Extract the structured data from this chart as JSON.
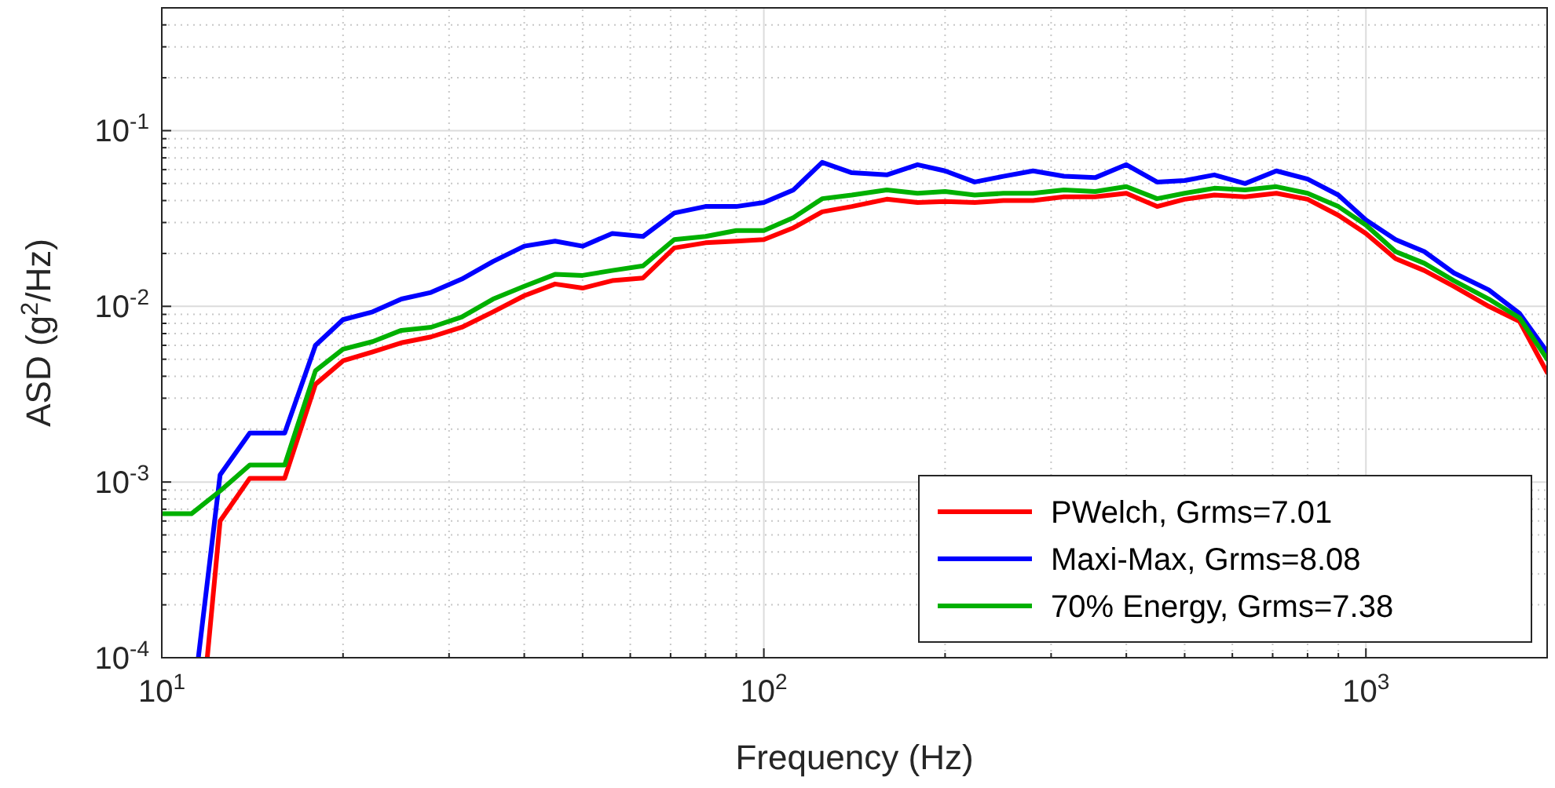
{
  "chart_data": {
    "type": "line",
    "xlabel": "Frequency (Hz)",
    "ylabel": "ASD (g$^{2}$/Hz)",
    "log": "xy",
    "grid": true,
    "legend": "bottom right",
    "line_style": "solid",
    "marker": "none",
    "xlim": [
      10,
      2000
    ],
    "xticks": [
      {
        "value": 10,
        "label": "10$^{1}$"
      },
      {
        "value": 100,
        "label": "10$^{2}$"
      },
      {
        "value": 1000,
        "label": "10$^{3}$"
      }
    ],
    "ylim": [
      0.0001,
      0.5
    ],
    "yticks": [
      {
        "value": 0.0001,
        "label": "10$^{-4}$"
      },
      {
        "value": 0.001,
        "label": "10$^{-3}$"
      },
      {
        "value": 0.01,
        "label": "10$^{-2}$"
      },
      {
        "value": 0.1,
        "label": "10$^{-1}$"
      }
    ],
    "series": [
      {
        "name": "PWelch, Grms=7.01",
        "color": "#ff0000",
        "x": [
          11.9,
          12.5,
          14,
          16,
          18,
          20,
          22.4,
          25,
          28,
          31.5,
          35.5,
          40,
          45,
          50,
          56,
          63,
          71,
          80,
          90,
          100,
          112,
          125,
          140,
          160,
          180,
          200,
          224,
          250,
          280,
          315,
          355,
          400,
          450,
          500,
          560,
          630,
          710,
          800,
          900,
          1000,
          1120,
          1250,
          1400,
          1600,
          1800,
          2000
        ],
        "values": [
          0.0001,
          0.0006,
          0.00105,
          0.00105,
          0.0036,
          0.0049,
          0.0055,
          0.0062,
          0.0067,
          0.0076,
          0.0093,
          0.0115,
          0.0134,
          0.0127,
          0.014,
          0.0145,
          0.0215,
          0.023,
          0.0235,
          0.024,
          0.028,
          0.0345,
          0.037,
          0.0407,
          0.039,
          0.0395,
          0.039,
          0.04,
          0.04,
          0.042,
          0.042,
          0.044,
          0.037,
          0.0407,
          0.043,
          0.042,
          0.044,
          0.0407,
          0.033,
          0.026,
          0.0187,
          0.016,
          0.013,
          0.01,
          0.0082,
          0.0042
        ]
      },
      {
        "name": "Maxi-Max, Grms=8.08",
        "color": "#0000ff",
        "x": [
          11.5,
          12.5,
          14,
          16,
          18,
          20,
          22.4,
          25,
          28,
          31.5,
          35.5,
          40,
          45,
          50,
          56,
          63,
          71,
          80,
          90,
          100,
          112,
          125,
          140,
          160,
          180,
          200,
          224,
          250,
          280,
          315,
          355,
          400,
          450,
          500,
          560,
          630,
          710,
          800,
          900,
          1000,
          1120,
          1250,
          1400,
          1600,
          1800,
          2000
        ],
        "values": [
          0.0001,
          0.0011,
          0.0019,
          0.0019,
          0.006,
          0.0084,
          0.0093,
          0.011,
          0.012,
          0.0143,
          0.018,
          0.022,
          0.0235,
          0.022,
          0.026,
          0.025,
          0.034,
          0.037,
          0.037,
          0.039,
          0.046,
          0.066,
          0.0576,
          0.056,
          0.064,
          0.059,
          0.051,
          0.055,
          0.059,
          0.055,
          0.054,
          0.064,
          0.051,
          0.052,
          0.056,
          0.05,
          0.059,
          0.053,
          0.043,
          0.031,
          0.024,
          0.0205,
          0.0155,
          0.0124,
          0.0091,
          0.0055
        ]
      },
      {
        "name": "70% Energy, Grms=7.38",
        "color": "#00b000",
        "x": [
          10,
          11.2,
          12.5,
          14,
          16,
          18,
          20,
          22.4,
          25,
          28,
          31.5,
          35.5,
          40,
          45,
          50,
          56,
          63,
          71,
          80,
          90,
          100,
          112,
          125,
          140,
          160,
          180,
          200,
          224,
          250,
          280,
          315,
          355,
          400,
          450,
          500,
          560,
          630,
          710,
          800,
          900,
          1000,
          1120,
          1250,
          1400,
          1600,
          1800,
          2000
        ],
        "values": [
          0.00066,
          0.00066,
          0.00089,
          0.00125,
          0.00125,
          0.0043,
          0.0057,
          0.0063,
          0.0073,
          0.0076,
          0.0087,
          0.011,
          0.013,
          0.0152,
          0.015,
          0.016,
          0.017,
          0.024,
          0.025,
          0.027,
          0.027,
          0.032,
          0.041,
          0.043,
          0.046,
          0.044,
          0.045,
          0.043,
          0.044,
          0.044,
          0.046,
          0.045,
          0.048,
          0.041,
          0.044,
          0.047,
          0.046,
          0.048,
          0.044,
          0.037,
          0.029,
          0.0205,
          0.0176,
          0.014,
          0.011,
          0.0086,
          0.005
        ]
      }
    ]
  }
}
